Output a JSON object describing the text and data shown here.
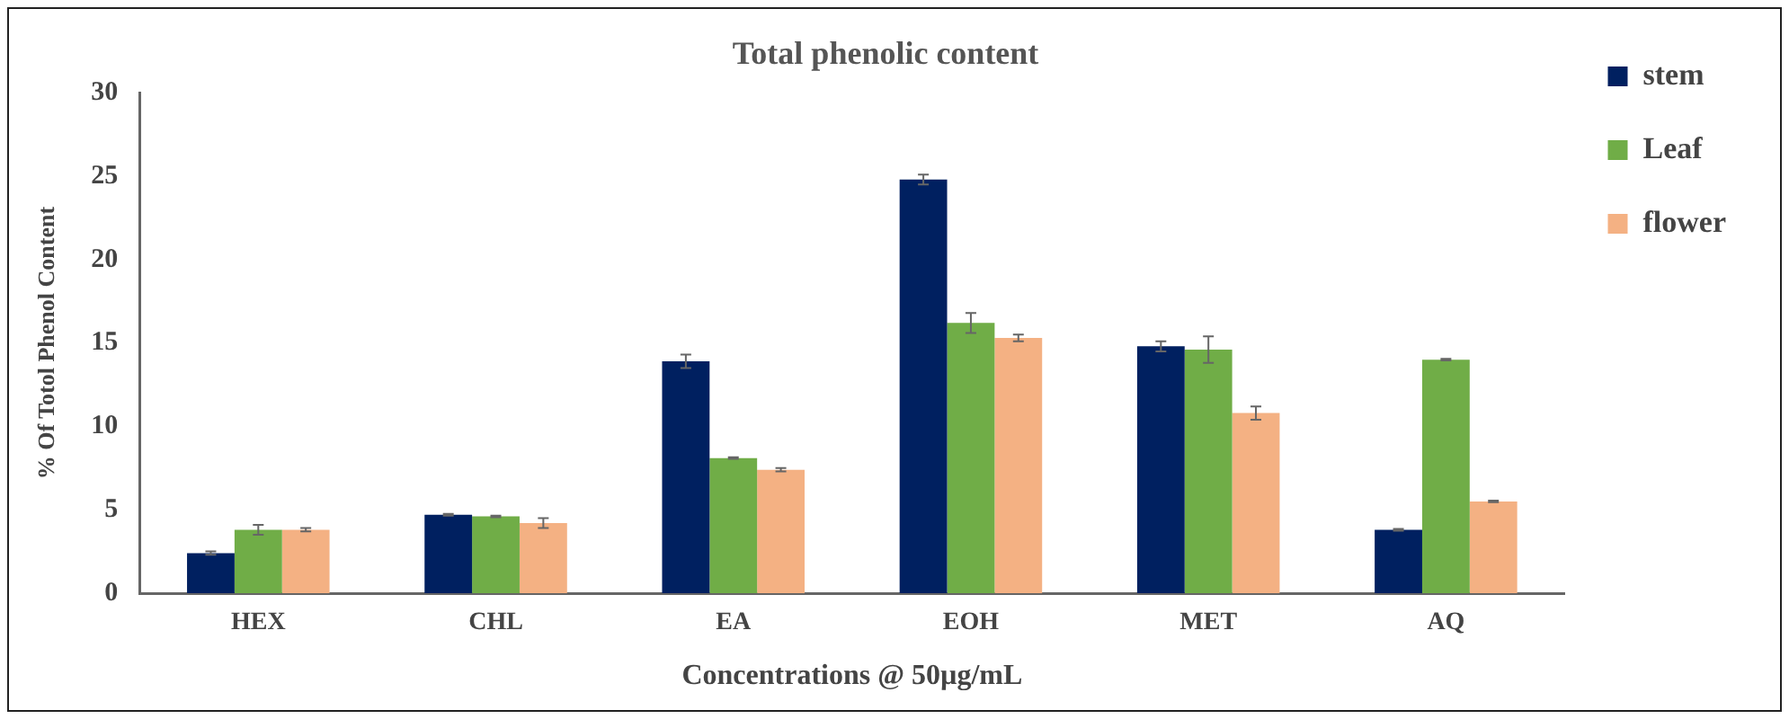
{
  "chart_data": {
    "type": "bar",
    "title": "Total phenolic content",
    "xlabel": "Concentrations @ 50µg/mL",
    "ylabel": "% Of Totol Phenol Content",
    "categories": [
      "HEX",
      "CHL",
      "EA",
      "EOH",
      "MET",
      "AQ"
    ],
    "series": [
      {
        "name": "stem",
        "color": "#002060",
        "values": [
          2.4,
          4.7,
          13.9,
          24.8,
          14.8,
          3.8
        ],
        "errors": [
          0.1,
          0.05,
          0.4,
          0.3,
          0.3,
          0.05
        ]
      },
      {
        "name": "Leaf",
        "color": "#70ad47",
        "values": [
          3.8,
          4.6,
          8.1,
          16.2,
          14.6,
          14.0
        ],
        "errors": [
          0.3,
          0.05,
          0.05,
          0.6,
          0.8,
          0.05
        ]
      },
      {
        "name": "flower",
        "color": "#f4b183",
        "values": [
          3.8,
          4.2,
          7.4,
          15.3,
          10.8,
          5.5
        ],
        "errors": [
          0.1,
          0.3,
          0.1,
          0.2,
          0.4,
          0.05
        ]
      }
    ],
    "ylim": [
      0,
      30
    ],
    "yticks": [
      0,
      5,
      10,
      15,
      20,
      25,
      30
    ],
    "grid": false,
    "legend": "top right"
  }
}
